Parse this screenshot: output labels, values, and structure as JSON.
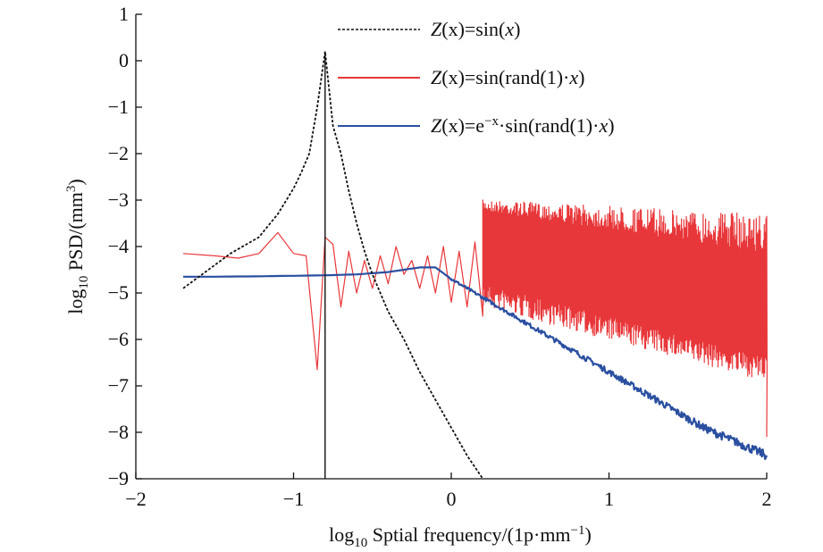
{
  "chart_data": {
    "type": "line",
    "xlim": [
      -2,
      2
    ],
    "ylim": [
      -9,
      1
    ],
    "x_ticks": [
      "−2",
      "−1",
      "0",
      "1",
      "2"
    ],
    "y_ticks": [
      "1",
      "0",
      "−1",
      "−2",
      "−3",
      "−4",
      "−5",
      "−6",
      "−7",
      "−8",
      "−9"
    ],
    "x_tick_values": [
      -2,
      -1,
      0,
      1,
      2
    ],
    "y_tick_values": [
      1,
      0,
      -1,
      -2,
      -3,
      -4,
      -5,
      -6,
      -7,
      -8,
      -9
    ],
    "xlabel": {
      "prefix": "log",
      "sub": "10",
      "rest": " Sptial frequency/(1p·mm",
      "sup": "−1",
      "close": ")"
    },
    "ylabel": {
      "prefix": "log",
      "sub": "10",
      "rest": " PSD/(mm",
      "sup": "3",
      "close": ")"
    },
    "legend_position": "top-right",
    "vertical_marker_x": -0.8,
    "series": [
      {
        "name": "Z(x)=sin(x)",
        "color": "#111111",
        "style": "dashed",
        "x": [
          -1.7,
          -1.5,
          -1.4,
          -1.22,
          -1.1,
          -1.0,
          -0.95,
          -0.9,
          -0.85,
          -0.8,
          -0.75,
          -0.7,
          -0.65,
          -0.6,
          -0.55,
          -0.5,
          -0.4,
          -0.3,
          -0.2,
          -0.1,
          0,
          0.1,
          0.2
        ],
        "y": [
          -4.9,
          -4.4,
          -4.15,
          -3.8,
          -3.3,
          -2.75,
          -2.4,
          -2.0,
          -1.0,
          0.2,
          -1.4,
          -2.0,
          -2.8,
          -3.5,
          -4.1,
          -4.6,
          -5.4,
          -6.0,
          -6.7,
          -7.3,
          -7.9,
          -8.5,
          -9.0
        ]
      },
      {
        "name": "Z(x)=sin(rand(1)·x)",
        "color": "#e8373a",
        "style": "solid",
        "x": [
          -1.7,
          -1.5,
          -1.35,
          -1.22,
          -1.1,
          -1.0,
          -0.92,
          -0.85,
          -0.8,
          -0.75,
          -0.7,
          -0.65,
          -0.6,
          -0.55,
          -0.5,
          -0.45,
          -0.4,
          -0.35,
          -0.3,
          -0.25,
          -0.2,
          -0.15,
          -0.1,
          -0.05,
          0.0,
          0.05,
          0.1,
          0.15,
          0.2,
          0.25,
          0.3,
          0.35,
          0.4,
          0.5,
          0.6,
          0.7,
          0.8,
          0.9,
          1.0,
          1.2,
          1.4,
          1.6,
          1.8,
          2.0
        ],
        "y": [
          -4.15,
          -4.2,
          -4.25,
          -4.15,
          -3.7,
          -4.15,
          -4.2,
          -6.65,
          -3.8,
          -3.95,
          -5.3,
          -4.1,
          -5.0,
          -4.3,
          -4.9,
          -4.2,
          -4.8,
          -4.0,
          -4.6,
          -4.3,
          -4.9,
          -4.2,
          -5.0,
          -4.0,
          -5.2,
          -4.1,
          -5.3,
          -3.9,
          -5.5,
          -3.7,
          -5.7,
          -3.6,
          -5.5,
          -3.8,
          -5.6,
          -3.6,
          -5.8,
          -3.5,
          -5.9,
          -3.4,
          -6.1,
          -3.5,
          -6.3,
          -4.3
        ],
        "spectrum": {
          "x_from": 0.2,
          "x_to": 2.0,
          "y_top": -3.3,
          "y_bottom": -6.4
        }
      },
      {
        "name": "Z(x)=e−x·sin(rand(1)·x)",
        "color": "#2a4fa0",
        "style": "solid",
        "x": [
          -1.7,
          -1.5,
          -1.2,
          -1.0,
          -0.8,
          -0.6,
          -0.4,
          -0.2,
          -0.1,
          0.0,
          0.2,
          0.4,
          0.6,
          0.8,
          1.0,
          1.2,
          1.4,
          1.6,
          1.8,
          2.0
        ],
        "y": [
          -4.65,
          -4.65,
          -4.64,
          -4.63,
          -4.62,
          -4.6,
          -4.55,
          -4.45,
          -4.45,
          -4.7,
          -5.1,
          -5.5,
          -5.9,
          -6.3,
          -6.7,
          -7.1,
          -7.5,
          -7.9,
          -8.2,
          -8.5
        ]
      }
    ]
  },
  "legend": {
    "items": [
      {
        "pre": "Z",
        "mid": "(x)=sin(",
        "x": "x",
        "post": ")"
      },
      {
        "pre": "Z",
        "mid": "(x)=sin(rand(1)·",
        "x": "x",
        "post": ")"
      },
      {
        "pre": "Z",
        "mid": "(x)=e",
        "sup": "−x",
        "mid2": "·sin(rand(1)·",
        "x": "x",
        "post": ")"
      }
    ]
  }
}
